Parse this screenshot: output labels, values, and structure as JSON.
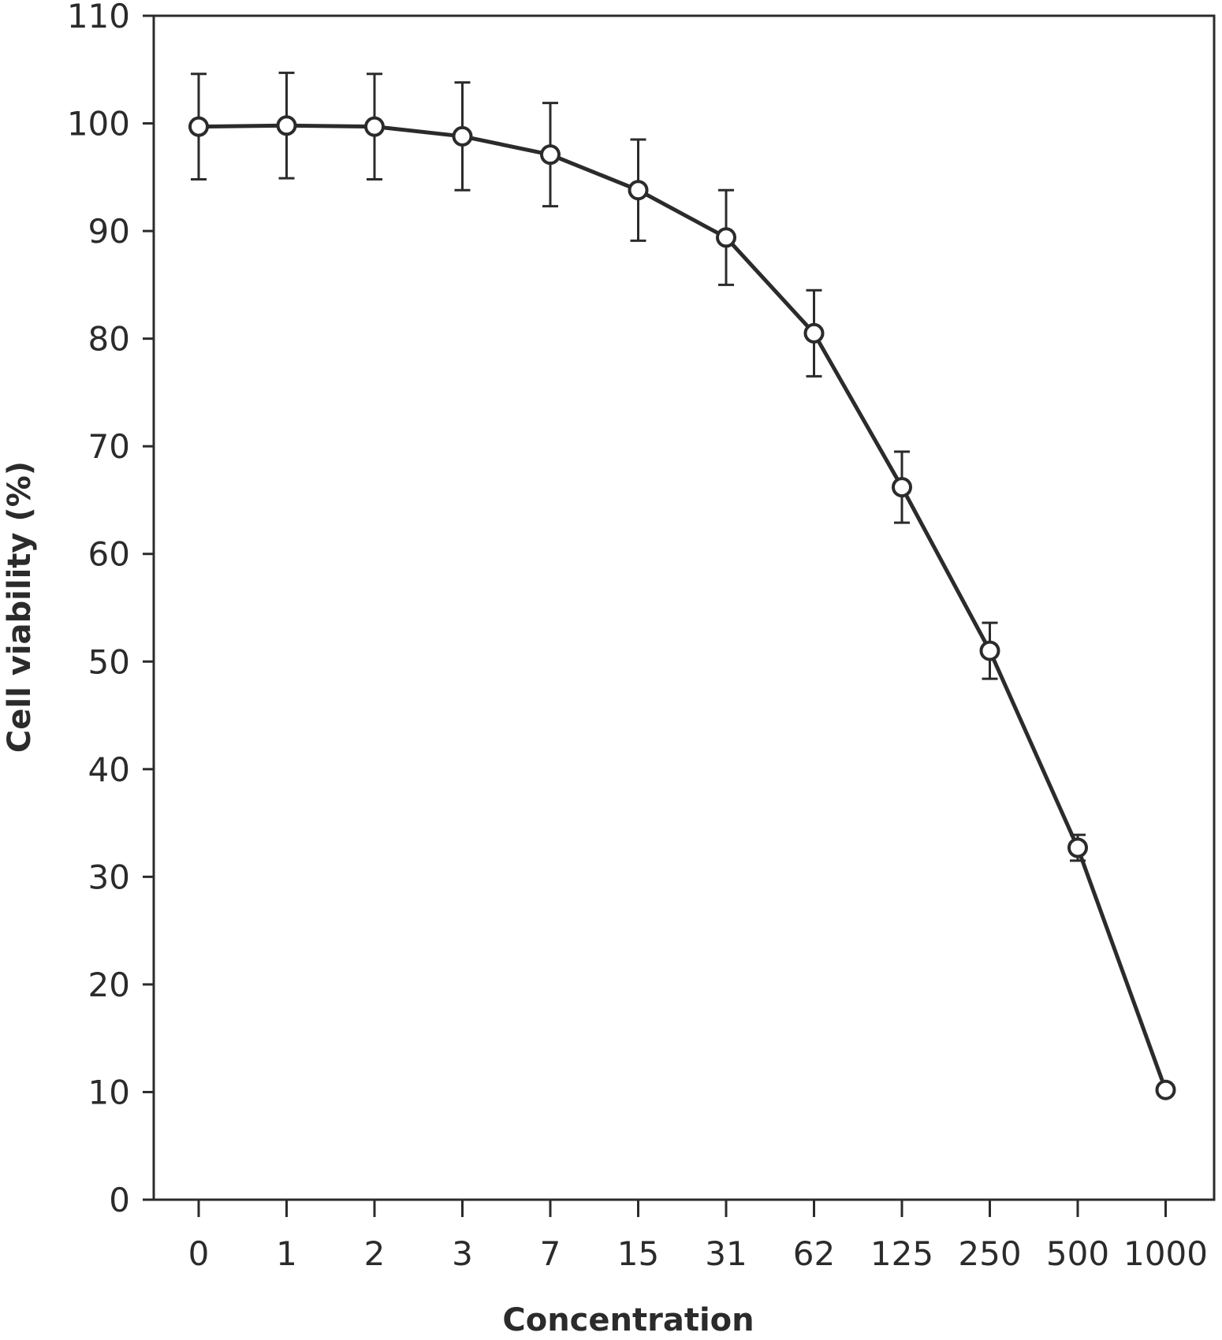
{
  "chart_data": {
    "type": "line",
    "title": "",
    "xlabel": "Concentration",
    "ylabel": "Cell viability (%)",
    "categories": [
      "0",
      "1",
      "2",
      "3",
      "7",
      "15",
      "31",
      "62",
      "125",
      "250",
      "500",
      "1000"
    ],
    "ylim": [
      0,
      110
    ],
    "yticks": [
      "0",
      "10",
      "20",
      "30",
      "40",
      "50",
      "60",
      "70",
      "80",
      "90",
      "100",
      "110"
    ],
    "grid": false,
    "series": [
      {
        "values": [
          99.7,
          99.8,
          99.7,
          98.8,
          97.1,
          93.8,
          89.4,
          80.5,
          66.2,
          51.0,
          32.7,
          10.2
        ],
        "error": [
          4.9,
          4.9,
          4.9,
          5.0,
          4.8,
          4.7,
          4.4,
          4.0,
          3.3,
          2.6,
          1.2,
          0
        ]
      }
    ],
    "colors": {
      "line": "#2b2b2b",
      "marker_fill": "#ffffff"
    }
  }
}
